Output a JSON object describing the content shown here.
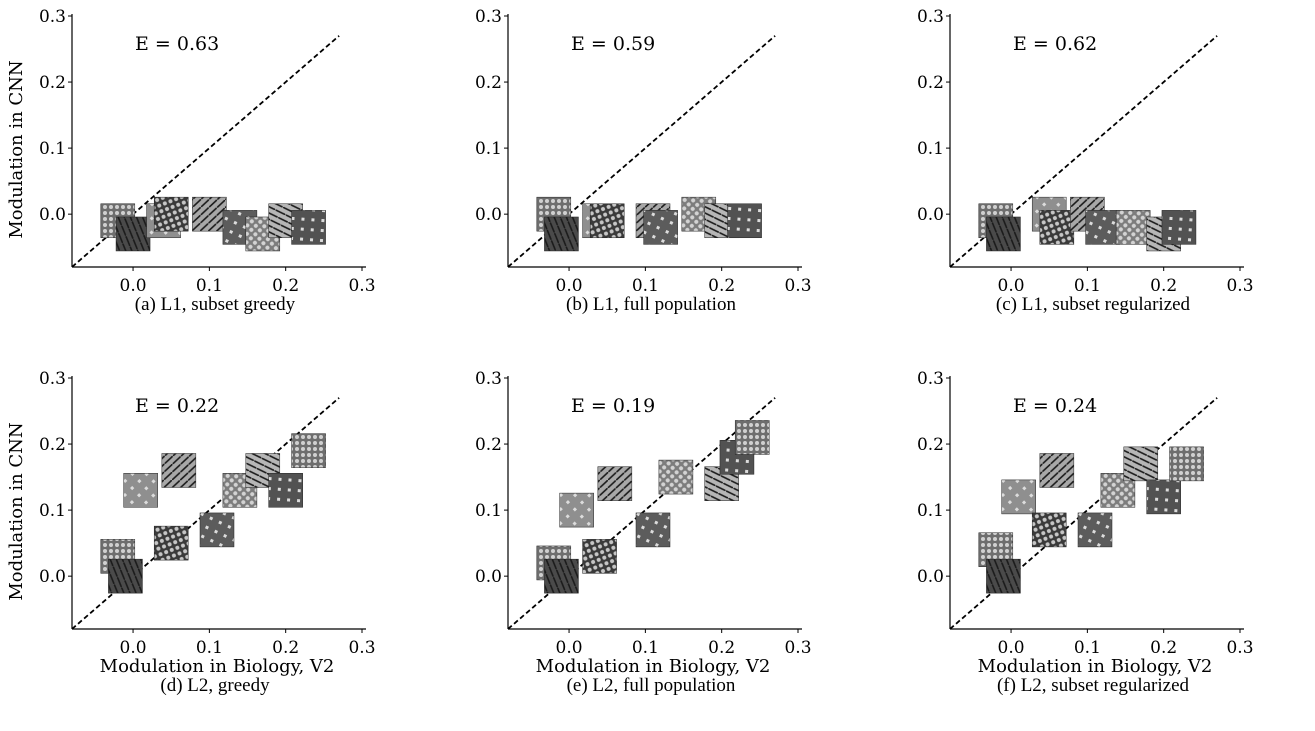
{
  "texture_colors": [
    "#6e6e6e",
    "#4a4a4a",
    "#8f8f8f",
    "#3a3a3a",
    "#a8a8a8",
    "#5c5c5c",
    "#7d7d7d",
    "#b6b6b6",
    "#525252"
  ],
  "chart_data": [
    {
      "type": "scatter",
      "title": "",
      "caption": "(a) L1, subset greedy",
      "annotation": "E = 0.63",
      "xlabel": "",
      "ylabel": "Modulation in CNN",
      "xlim": [
        -0.08,
        0.3
      ],
      "ylim": [
        -0.08,
        0.3
      ],
      "xticks": [
        "0.0",
        "0.1",
        "0.2",
        "0.3"
      ],
      "yticks": [
        "0.0",
        "0.1",
        "0.2",
        "0.3"
      ],
      "diagonal": "y = x (dashed)",
      "points": [
        {
          "x": -0.02,
          "y": -0.01
        },
        {
          "x": 0.0,
          "y": -0.03
        },
        {
          "x": 0.04,
          "y": -0.01
        },
        {
          "x": 0.05,
          "y": 0.0
        },
        {
          "x": 0.1,
          "y": 0.0
        },
        {
          "x": 0.14,
          "y": -0.02
        },
        {
          "x": 0.17,
          "y": -0.03
        },
        {
          "x": 0.2,
          "y": -0.01
        },
        {
          "x": 0.23,
          "y": -0.02
        }
      ]
    },
    {
      "type": "scatter",
      "title": "",
      "caption": "(b) L1, full population",
      "annotation": "E = 0.59",
      "xlabel": "",
      "ylabel": "",
      "xlim": [
        -0.08,
        0.3
      ],
      "ylim": [
        -0.08,
        0.3
      ],
      "xticks": [
        "0.0",
        "0.1",
        "0.2",
        "0.3"
      ],
      "yticks": [
        "0.0",
        "0.1",
        "0.2",
        "0.3"
      ],
      "diagonal": "y = x (dashed)",
      "points": [
        {
          "x": -0.02,
          "y": 0.0
        },
        {
          "x": -0.01,
          "y": -0.03
        },
        {
          "x": 0.04,
          "y": -0.01
        },
        {
          "x": 0.05,
          "y": -0.01
        },
        {
          "x": 0.11,
          "y": -0.01
        },
        {
          "x": 0.12,
          "y": -0.02
        },
        {
          "x": 0.17,
          "y": 0.0
        },
        {
          "x": 0.2,
          "y": -0.01
        },
        {
          "x": 0.23,
          "y": -0.01
        }
      ]
    },
    {
      "type": "scatter",
      "title": "",
      "caption": "(c) L1, subset regularized",
      "annotation": "E = 0.62",
      "xlabel": "",
      "ylabel": "",
      "xlim": [
        -0.08,
        0.3
      ],
      "ylim": [
        -0.08,
        0.3
      ],
      "xticks": [
        "0.0",
        "0.1",
        "0.2",
        "0.3"
      ],
      "yticks": [
        "0.0",
        "0.1",
        "0.2",
        "0.3"
      ],
      "diagonal": "y = x (dashed)",
      "points": [
        {
          "x": -0.02,
          "y": -0.01
        },
        {
          "x": -0.01,
          "y": -0.03
        },
        {
          "x": 0.05,
          "y": 0.0
        },
        {
          "x": 0.06,
          "y": -0.02
        },
        {
          "x": 0.1,
          "y": 0.0
        },
        {
          "x": 0.12,
          "y": -0.02
        },
        {
          "x": 0.16,
          "y": -0.02
        },
        {
          "x": 0.2,
          "y": -0.03
        },
        {
          "x": 0.22,
          "y": -0.02
        }
      ]
    },
    {
      "type": "scatter",
      "title": "",
      "caption": "(d) L2, greedy",
      "annotation": "E = 0.22",
      "xlabel": "Modulation in Biology, V2",
      "ylabel": "Modulation in CNN",
      "xlim": [
        -0.08,
        0.3
      ],
      "ylim": [
        -0.08,
        0.3
      ],
      "xticks": [
        "0.0",
        "0.1",
        "0.2",
        "0.3"
      ],
      "yticks": [
        "0.0",
        "0.1",
        "0.2",
        "0.3"
      ],
      "diagonal": "y = x (dashed)",
      "points": [
        {
          "x": -0.02,
          "y": 0.03
        },
        {
          "x": -0.01,
          "y": 0.0
        },
        {
          "x": 0.01,
          "y": 0.13
        },
        {
          "x": 0.05,
          "y": 0.05
        },
        {
          "x": 0.06,
          "y": 0.16
        },
        {
          "x": 0.11,
          "y": 0.07
        },
        {
          "x": 0.14,
          "y": 0.13
        },
        {
          "x": 0.17,
          "y": 0.16
        },
        {
          "x": 0.2,
          "y": 0.13
        },
        {
          "x": 0.23,
          "y": 0.19
        }
      ]
    },
    {
      "type": "scatter",
      "title": "",
      "caption": "(e) L2, full population",
      "annotation": "E = 0.19",
      "xlabel": "Modulation in Biology, V2",
      "ylabel": "",
      "xlim": [
        -0.08,
        0.3
      ],
      "ylim": [
        -0.08,
        0.3
      ],
      "xticks": [
        "0.0",
        "0.1",
        "0.2",
        "0.3"
      ],
      "yticks": [
        "0.0",
        "0.1",
        "0.2",
        "0.3"
      ],
      "diagonal": "y = x (dashed)",
      "points": [
        {
          "x": -0.02,
          "y": 0.02
        },
        {
          "x": -0.01,
          "y": 0.0
        },
        {
          "x": 0.01,
          "y": 0.1
        },
        {
          "x": 0.04,
          "y": 0.03
        },
        {
          "x": 0.06,
          "y": 0.14
        },
        {
          "x": 0.11,
          "y": 0.07
        },
        {
          "x": 0.14,
          "y": 0.15
        },
        {
          "x": 0.2,
          "y": 0.14
        },
        {
          "x": 0.22,
          "y": 0.18
        },
        {
          "x": 0.24,
          "y": 0.21
        }
      ]
    },
    {
      "type": "scatter",
      "title": "",
      "caption": "(f) L2, subset regularized",
      "annotation": "E = 0.24",
      "xlabel": "Modulation in Biology, V2",
      "ylabel": "",
      "xlim": [
        -0.08,
        0.3
      ],
      "ylim": [
        -0.08,
        0.3
      ],
      "xticks": [
        "0.0",
        "0.1",
        "0.2",
        "0.3"
      ],
      "yticks": [
        "0.0",
        "0.1",
        "0.2",
        "0.3"
      ],
      "diagonal": "y = x (dashed)",
      "points": [
        {
          "x": -0.02,
          "y": 0.04
        },
        {
          "x": -0.01,
          "y": 0.0
        },
        {
          "x": 0.01,
          "y": 0.12
        },
        {
          "x": 0.05,
          "y": 0.07
        },
        {
          "x": 0.06,
          "y": 0.16
        },
        {
          "x": 0.11,
          "y": 0.07
        },
        {
          "x": 0.14,
          "y": 0.13
        },
        {
          "x": 0.17,
          "y": 0.17
        },
        {
          "x": 0.2,
          "y": 0.12
        },
        {
          "x": 0.23,
          "y": 0.17
        }
      ]
    }
  ]
}
